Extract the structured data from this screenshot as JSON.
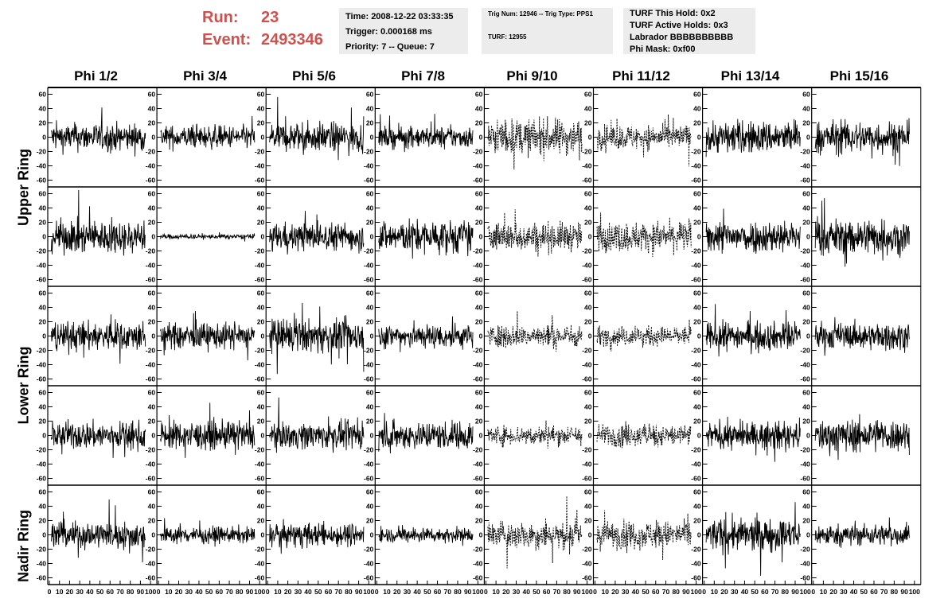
{
  "header": {
    "run_label": "Run:",
    "run_value": "23",
    "event_label": "Event:",
    "event_value": "2493346"
  },
  "info": {
    "time": "Time: 2008-12-22 03:33:35",
    "trigger": "Trigger: 0.000168 ms",
    "priority": "Priority: 7 -- Queue: 7",
    "trig_num": "Trig Num: 12946 -- Trig Type: PPS1",
    "turf": "TURF: 12955",
    "turf_this_hold": "TURF This Hold: 0x2",
    "turf_active_holds": "TURF Active Holds: 0x3",
    "labrador": "Labrador BBBBBBBBBB",
    "phi_mask": "Phi Mask: 0xf00"
  },
  "columns": [
    "Phi 1/2",
    "Phi 3/4",
    "Phi 5/6",
    "Phi 7/8",
    "Phi 9/10",
    "Phi 11/12",
    "Phi 13/14",
    "Phi 15/16"
  ],
  "row_labels": [
    "Upper Ring",
    "Lower Ring",
    "Nadir Ring"
  ],
  "colors": {
    "accent": "#d0504e",
    "info_bg": "#ececec",
    "trace": "#000000"
  },
  "chart_data": {
    "type": "line",
    "grid": false,
    "rows": 5,
    "cols": 8,
    "xlim": [
      0,
      100
    ],
    "ylim": [
      -65,
      65
    ],
    "x_ticks": [
      0,
      10,
      20,
      30,
      40,
      50,
      60,
      70,
      80,
      90,
      100
    ],
    "y_ticks": [
      -60,
      -40,
      -20,
      0,
      20,
      40,
      60
    ],
    "x_tick_labels": [
      "0",
      "10",
      "20",
      "30",
      "40",
      "50",
      "60",
      "70",
      "80",
      "90",
      "100"
    ],
    "y_tick_labels": [
      "-60",
      "-40",
      "-20",
      "0",
      "20",
      "40",
      "60"
    ],
    "panels": [
      {
        "row": 0,
        "col": 0,
        "amplitude": 17,
        "style": "solid"
      },
      {
        "row": 0,
        "col": 1,
        "amplitude": 14,
        "style": "solid"
      },
      {
        "row": 0,
        "col": 2,
        "amplitude": 18,
        "style": "solid"
      },
      {
        "row": 0,
        "col": 3,
        "amplitude": 13,
        "style": "solid"
      },
      {
        "row": 0,
        "col": 4,
        "amplitude": 22,
        "style": "dashed"
      },
      {
        "row": 0,
        "col": 5,
        "amplitude": 15,
        "style": "dashed"
      },
      {
        "row": 0,
        "col": 6,
        "amplitude": 20,
        "style": "solid"
      },
      {
        "row": 0,
        "col": 7,
        "amplitude": 20,
        "style": "solid"
      },
      {
        "row": 1,
        "col": 0,
        "amplitude": 20,
        "style": "solid"
      },
      {
        "row": 1,
        "col": 1,
        "amplitude": 3,
        "style": "solid"
      },
      {
        "row": 1,
        "col": 2,
        "amplitude": 17,
        "style": "solid"
      },
      {
        "row": 1,
        "col": 3,
        "amplitude": 20,
        "style": "solid"
      },
      {
        "row": 1,
        "col": 4,
        "amplitude": 18,
        "style": "dashed"
      },
      {
        "row": 1,
        "col": 5,
        "amplitude": 18,
        "style": "dashed"
      },
      {
        "row": 1,
        "col": 6,
        "amplitude": 20,
        "style": "solid"
      },
      {
        "row": 1,
        "col": 7,
        "amplitude": 22,
        "style": "solid"
      },
      {
        "row": 2,
        "col": 0,
        "amplitude": 18,
        "style": "solid"
      },
      {
        "row": 2,
        "col": 1,
        "amplitude": 16,
        "style": "solid"
      },
      {
        "row": 2,
        "col": 2,
        "amplitude": 20,
        "style": "solid"
      },
      {
        "row": 2,
        "col": 3,
        "amplitude": 15,
        "style": "solid"
      },
      {
        "row": 2,
        "col": 4,
        "amplitude": 14,
        "style": "dashed"
      },
      {
        "row": 2,
        "col": 5,
        "amplitude": 12,
        "style": "dashed"
      },
      {
        "row": 2,
        "col": 6,
        "amplitude": 17,
        "style": "solid"
      },
      {
        "row": 2,
        "col": 7,
        "amplitude": 16,
        "style": "solid"
      },
      {
        "row": 3,
        "col": 0,
        "amplitude": 17,
        "style": "solid"
      },
      {
        "row": 3,
        "col": 1,
        "amplitude": 17,
        "style": "solid"
      },
      {
        "row": 3,
        "col": 2,
        "amplitude": 16,
        "style": "solid"
      },
      {
        "row": 3,
        "col": 3,
        "amplitude": 17,
        "style": "solid"
      },
      {
        "row": 3,
        "col": 4,
        "amplitude": 12,
        "style": "dashed"
      },
      {
        "row": 3,
        "col": 5,
        "amplitude": 14,
        "style": "dashed"
      },
      {
        "row": 3,
        "col": 6,
        "amplitude": 16,
        "style": "solid"
      },
      {
        "row": 3,
        "col": 7,
        "amplitude": 20,
        "style": "solid"
      },
      {
        "row": 4,
        "col": 0,
        "amplitude": 17,
        "style": "solid"
      },
      {
        "row": 4,
        "col": 1,
        "amplitude": 10,
        "style": "solid"
      },
      {
        "row": 4,
        "col": 2,
        "amplitude": 14,
        "style": "solid"
      },
      {
        "row": 4,
        "col": 3,
        "amplitude": 9,
        "style": "solid"
      },
      {
        "row": 4,
        "col": 4,
        "amplitude": 17,
        "style": "dashed"
      },
      {
        "row": 4,
        "col": 5,
        "amplitude": 17,
        "style": "dashed"
      },
      {
        "row": 4,
        "col": 6,
        "amplitude": 20,
        "style": "solid"
      },
      {
        "row": 4,
        "col": 7,
        "amplitude": 13,
        "style": "solid"
      }
    ]
  }
}
